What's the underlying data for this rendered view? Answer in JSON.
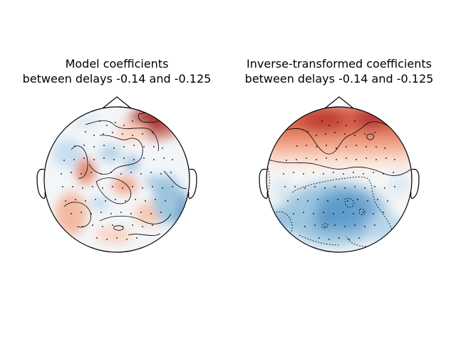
{
  "figure": {
    "panels": [
      {
        "title_line1": "Model coefficients",
        "title_line2": "between delays -0.14 and -0.125",
        "pattern": "mixed",
        "extremes": {
          "max_location": "top-right",
          "min_location": "right"
        }
      },
      {
        "title_line1": "Inverse-transformed coefficients",
        "title_line2": "between delays -0.14 and -0.125",
        "pattern": "frontal-positive-posterior-negative"
      }
    ],
    "colormap": {
      "name": "RdBu_r",
      "positive": "#67001f",
      "mid": "#f7f7f7",
      "negative": "#053061"
    }
  }
}
